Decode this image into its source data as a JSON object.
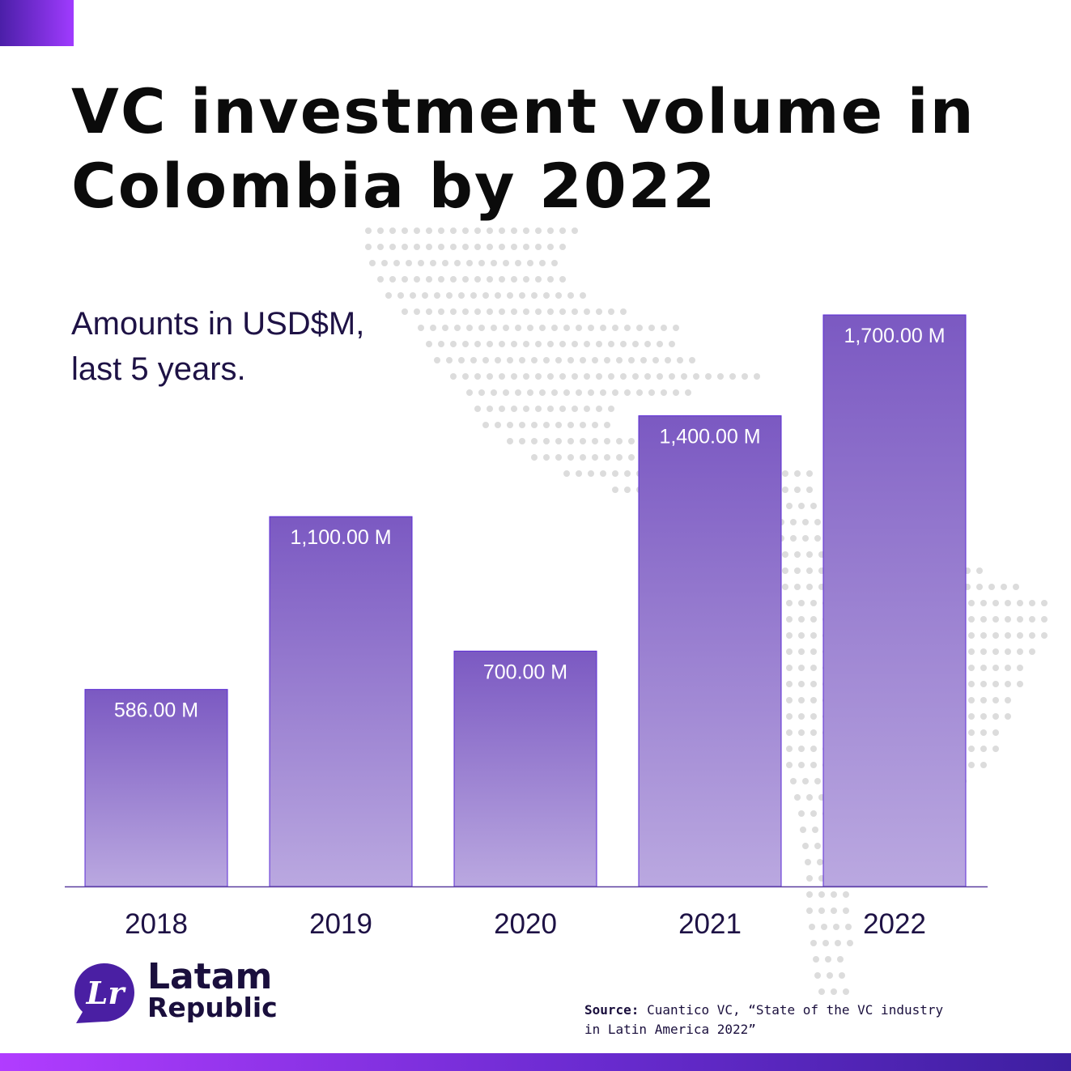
{
  "title": "VC investment volume in Colombia by 2022",
  "subtitle_line1": "Amounts in USD$M,",
  "subtitle_line2": "last 5 years.",
  "chart_data": {
    "type": "bar",
    "categories": [
      "2018",
      "2019",
      "2020",
      "2021",
      "2022"
    ],
    "values": [
      586,
      1100,
      700,
      1400,
      1700
    ],
    "data_labels": [
      "586.00 M",
      "1,100.00 M",
      "700.00 M",
      "1,400.00 M",
      "1,700.00 M"
    ],
    "units": "USD$M",
    "ylim": [
      0,
      1700
    ],
    "grid": false,
    "legend": "none",
    "colors": {
      "bar_top": "#7b59c2",
      "bar_bottom": "#baa8e0",
      "bar_border": "#5b2bd6",
      "axis": "#5b3fa0"
    }
  },
  "logo": {
    "line1": "Latam",
    "line2": "Republic",
    "mark_letters": "Lr",
    "color": "#4a1fa3"
  },
  "source": {
    "label": "Source:",
    "text": " Cuantico VC, “State of the VC industry in Latin America 2022”"
  },
  "colors": {
    "accent_start": "#4b1fa8",
    "accent_end": "#a03bff",
    "dots": "#dcdcdc"
  }
}
